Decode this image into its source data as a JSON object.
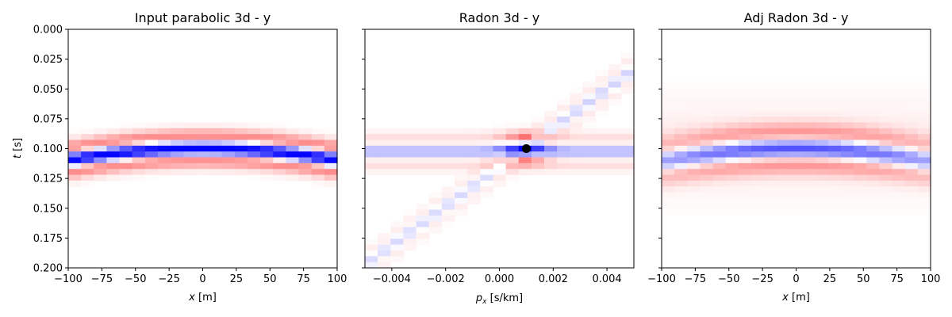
{
  "chart_data": [
    {
      "type": "heatmap",
      "title": "Input parabolic 3d - y",
      "xlabel": "$x$ [m]",
      "xlabel_parts": [
        "x",
        " [m]"
      ],
      "ylabel": "$t$ [s]",
      "ylabel_parts": [
        "t",
        " [s]"
      ],
      "xlim": [
        -100,
        100
      ],
      "ylim": [
        0.2,
        0.0
      ],
      "xticks": [
        "−100",
        "−75",
        "−50",
        "−25",
        "0",
        "25",
        "50",
        "75",
        "100"
      ],
      "yticks": [
        "0.000",
        "0.025",
        "0.050",
        "0.075",
        "0.100",
        "0.125",
        "0.150",
        "0.175",
        "0.200"
      ],
      "colormap": "bwr",
      "event": {
        "kind": "parabola",
        "t0": 0.1,
        "curvature_at_edge": 0.009,
        "wavelet": "ricker"
      }
    },
    {
      "type": "heatmap",
      "title": "Radon 3d - y",
      "xlabel": "$p_x$ [s/km]",
      "xlabel_parts": [
        "p",
        "x",
        " [s/km]"
      ],
      "xlim": [
        -0.005,
        0.005
      ],
      "ylim": [
        0.2,
        0.0
      ],
      "xticks": [
        "−0.004",
        "−0.002",
        "0.000",
        "0.002",
        "0.004"
      ],
      "yticks_shared": true,
      "colormap": "bwr",
      "marker": {
        "x": 0.001,
        "y": 0.1,
        "color": "#000000"
      }
    },
    {
      "type": "heatmap",
      "title": "Adj Radon 3d - y",
      "xlabel": "$x$ [m]",
      "xlabel_parts": [
        "x",
        " [m]"
      ],
      "xlim": [
        -100,
        100
      ],
      "ylim": [
        0.2,
        0.0
      ],
      "xticks": [
        "−100",
        "−75",
        "−50",
        "−25",
        "0",
        "25",
        "50",
        "75",
        "100"
      ],
      "yticks_shared": true,
      "colormap": "bwr"
    }
  ],
  "colors": {
    "negative": "#0000ff",
    "positive": "#ff0000",
    "zero": "#ffffff",
    "marker": "#000000"
  }
}
